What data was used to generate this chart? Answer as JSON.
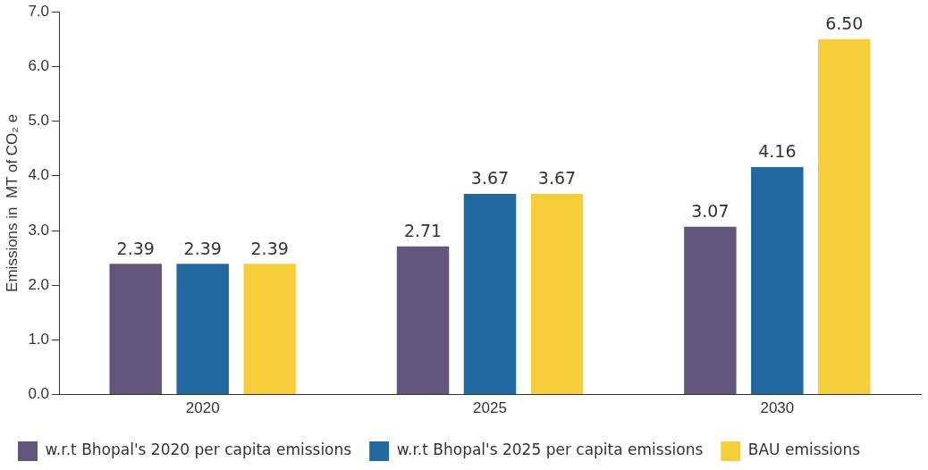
{
  "chart_data": {
    "type": "bar",
    "ylabel": "Emissions in  MT of CO₂ e",
    "categories": [
      "2020",
      "2025",
      "2030"
    ],
    "series": [
      {
        "name": "w.r.t Bhopal's 2020 per capita emissions",
        "color": "#62567a",
        "values": [
          2.39,
          2.71,
          3.07
        ],
        "value_labels": [
          "2.39",
          "2.71",
          "3.07"
        ]
      },
      {
        "name": "w.r.t Bhopal's 2025 per capita emissions",
        "color": "#2268a0",
        "values": [
          2.39,
          3.67,
          4.16
        ],
        "value_labels": [
          "2.39",
          "3.67",
          "4.16"
        ]
      },
      {
        "name": "BAU emissions",
        "color": "#f6cd3b",
        "values": [
          2.39,
          3.67,
          6.5
        ],
        "value_labels": [
          "2.39",
          "3.67",
          "6.50"
        ]
      }
    ],
    "ylim": [
      0,
      7
    ],
    "yticks": [
      {
        "value": 0,
        "label": "0.0"
      },
      {
        "value": 1,
        "label": "1.0"
      },
      {
        "value": 2,
        "label": "2.0"
      },
      {
        "value": 3,
        "label": "3.0"
      },
      {
        "value": 4,
        "label": "4.0"
      },
      {
        "value": 5,
        "label": "5.0"
      },
      {
        "value": 6,
        "label": "6.0"
      },
      {
        "value": 7,
        "label": "7.0"
      }
    ],
    "grid": false,
    "legend": "bottom"
  }
}
